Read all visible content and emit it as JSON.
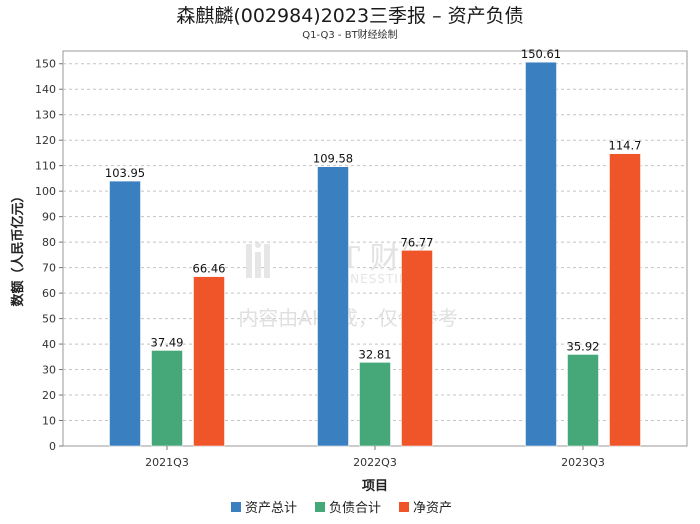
{
  "chart_data": {
    "type": "bar",
    "title": "森麒麟(002984)2023三季报 – 资产负债",
    "subtitle": "Q1-Q3 - BT财经绘制",
    "xlabel": "项目",
    "ylabel": "数额（人民币亿元）",
    "categories": [
      "2021Q3",
      "2022Q3",
      "2023Q3"
    ],
    "ylim": [
      0,
      155
    ],
    "yticks": [
      0,
      10,
      20,
      30,
      40,
      50,
      60,
      70,
      80,
      90,
      100,
      110,
      120,
      130,
      140,
      150
    ],
    "grid": true,
    "legend_position": "bottom",
    "series": [
      {
        "name": "资产总计",
        "color": "#3a80c0",
        "values": [
          103.95,
          109.58,
          150.61
        ],
        "labels": [
          "103.95",
          "109.58",
          "150.61"
        ]
      },
      {
        "name": "负债合计",
        "color": "#46a878",
        "values": [
          37.49,
          32.81,
          35.92
        ],
        "labels": [
          "37.49",
          "32.81",
          "35.92"
        ]
      },
      {
        "name": "净资产",
        "color": "#f0552a",
        "values": [
          66.46,
          76.77,
          114.7
        ],
        "labels": [
          "66.46",
          "76.77",
          "114.7"
        ]
      }
    ]
  },
  "watermark": {
    "brand": "BT 财经",
    "brand_en": "BUSINESSTIMES",
    "notice": "内容由AI生成，仅供参考"
  }
}
